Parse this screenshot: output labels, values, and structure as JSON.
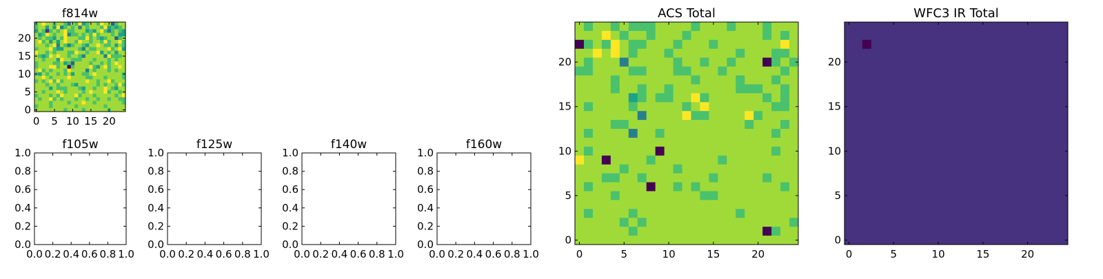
{
  "palette": [
    "#440154",
    "#46327e",
    "#365c8d",
    "#277f8e",
    "#1fa187",
    "#4ac16d",
    "#a0da39",
    "#fde725"
  ],
  "chart_data": [
    {
      "id": "f814w",
      "type": "heatmap",
      "title": "f814w",
      "grid_size": 25,
      "xlim": [
        -0.5,
        24.5
      ],
      "ylim": [
        -0.5,
        24.5
      ],
      "xticks": [
        0,
        5,
        10,
        15,
        20
      ],
      "yticks": [
        0,
        5,
        10,
        15,
        20
      ],
      "xticklabels": [
        "0",
        "5",
        "10",
        "15",
        "20"
      ],
      "yticklabels": [
        "0",
        "5",
        "10",
        "15",
        "20"
      ],
      "colormap": "viridis",
      "values": [
        "5676656653657456657662566",
        "5664647356563656665745456",
        "4651565675566645467535654",
        "6457656673556565756665644",
        "6565546576665575654566256",
        "6756464676657665665756675",
        "6665673653566546676556465",
        "5666754466665365566675674",
        "7665656665576656674656466",
        "6545767665665366666375556",
        "6656664766555666566656566",
        "5666655645266665665656766",
        "5666775660566667546756676",
        "6756566657666636566656566",
        "5465665656466556766666665",
        "6676566667666655666566665",
        "5656757566666676656675666",
        "6665665666546666656566575",
        "6666465556665466566765466",
        "6656667656666567666756656",
        "5666565766675666566666567",
        "6566756566656656656656655",
        "6666566665666766566666665",
        "5666566666656666666566666",
        "6666666656666566666656666"
      ]
    },
    {
      "id": "f105w",
      "type": "heatmap",
      "title": "f105w",
      "empty": true,
      "xlim": [
        0,
        1
      ],
      "ylim": [
        0,
        1
      ],
      "xticks": [
        0,
        0.2,
        0.4,
        0.6,
        0.8,
        1.0
      ],
      "yticks": [
        0,
        0.2,
        0.4,
        0.6,
        0.8,
        1.0
      ],
      "xticklabels": [
        "0.0",
        "0.2",
        "0.4",
        "0.6",
        "0.8",
        "1.0"
      ],
      "yticklabels": [
        "0.0",
        "0.2",
        "0.4",
        "0.6",
        "0.8",
        "1.0"
      ]
    },
    {
      "id": "f125w",
      "type": "heatmap",
      "title": "f125w",
      "empty": true,
      "xlim": [
        0,
        1
      ],
      "ylim": [
        0,
        1
      ],
      "xticks": [
        0,
        0.2,
        0.4,
        0.6,
        0.8,
        1.0
      ],
      "yticks": [
        0,
        0.2,
        0.4,
        0.6,
        0.8,
        1.0
      ],
      "xticklabels": [
        "0.0",
        "0.2",
        "0.4",
        "0.6",
        "0.8",
        "1.0"
      ],
      "yticklabels": [
        "0.0",
        "0.2",
        "0.4",
        "0.6",
        "0.8",
        "1.0"
      ]
    },
    {
      "id": "f140w",
      "type": "heatmap",
      "title": "f140w",
      "empty": true,
      "xlim": [
        0,
        1
      ],
      "ylim": [
        0,
        1
      ],
      "xticks": [
        0,
        0.2,
        0.4,
        0.6,
        0.8,
        1.0
      ],
      "yticks": [
        0,
        0.2,
        0.4,
        0.6,
        0.8,
        1.0
      ],
      "xticklabels": [
        "0.0",
        "0.2",
        "0.4",
        "0.6",
        "0.8",
        "1.0"
      ],
      "yticklabels": [
        "0.0",
        "0.2",
        "0.4",
        "0.6",
        "0.8",
        "1.0"
      ]
    },
    {
      "id": "f160w",
      "type": "heatmap",
      "title": "f160w",
      "empty": true,
      "xlim": [
        0,
        1
      ],
      "ylim": [
        0,
        1
      ],
      "xticks": [
        0,
        0.2,
        0.4,
        0.6,
        0.8,
        1.0
      ],
      "yticks": [
        0,
        0.2,
        0.4,
        0.6,
        0.8,
        1.0
      ],
      "xticklabels": [
        "0.0",
        "0.2",
        "0.4",
        "0.6",
        "0.8",
        "1.0"
      ],
      "yticklabels": [
        "0.0",
        "0.2",
        "0.4",
        "0.6",
        "0.8",
        "1.0"
      ]
    },
    {
      "id": "acs-total",
      "type": "heatmap",
      "title": "ACS Total",
      "grid_size": 25,
      "xlim": [
        -0.5,
        24.5
      ],
      "ylim": [
        -0.5,
        24.5
      ],
      "xticks": [
        0,
        5,
        10,
        15,
        20
      ],
      "yticks": [
        0,
        5,
        10,
        15,
        20
      ],
      "xticklabels": [
        "0",
        "5",
        "10",
        "15",
        "20"
      ],
      "yticklabels": [
        "0",
        "5",
        "10",
        "15",
        "20"
      ],
      "colormap": "viridis",
      "values": [
        "6566565556666566656665666",
        "6667656656665666666665656",
        "0565765566656665666666676",
        "6676765666566666665666556",
        "6566636666656656656660565",
        "5566665566655666566666656",
        "6666566666666566665666566",
        "6666566566566666665556656",
        "6666664565566756666665656",
        "6566665666665676666666556",
        "6666666366667556666756666",
        "6666556666666666666566656",
        "6566663665666666666666566",
        "6666666666666666666666666",
        "6566666660666666666666566",
        "7660666656666666566666666",
        "6666656666656666666666666",
        "6665566566666665666665666",
        "6566666606656566666666656",
        "6666566666666655666666666",
        "6666666666666666666666666",
        "6566665666666666665666666",
        "6666656566666666666666665",
        "6666665666666666666660566",
        "6666666666666666666666666"
      ]
    },
    {
      "id": "wfc3-ir-total",
      "type": "heatmap",
      "title": "WFC3 IR Total",
      "grid_size": 25,
      "xlim": [
        -0.5,
        24.5
      ],
      "ylim": [
        -0.5,
        24.5
      ],
      "xticks": [
        0,
        5,
        10,
        15,
        20
      ],
      "yticks": [
        0,
        5,
        10,
        15,
        20
      ],
      "xticklabels": [
        "0",
        "5",
        "10",
        "15",
        "20"
      ],
      "yticklabels": [
        "0",
        "5",
        "10",
        "15",
        "20"
      ],
      "colormap": "viridis",
      "masked_color": "#ffffff",
      "values": [
        "1111111111111111111111111",
        "1111111111111111111111111",
        "1101111111111111111111111",
        "1111111111111111111111111",
        "1111111111111111111111111",
        "1111111111111111111111111",
        "1111111111111111111111111",
        "1111111111111111111111111",
        "1111111111111111111111111",
        "1111111111111111111111111",
        "1111111111111111111111111",
        "1111111111111111111111111",
        "1111111111111111111111111",
        "1111111111111111111111111",
        "1111111111111111111111111",
        "1111111111111111111111111",
        "1111111111111111111111111",
        "1111111111111111111111111",
        "1111111111111111111111111",
        "1111111111111111111111111",
        "1111111111111111111111111",
        "1111111111111111111111111",
        "1111111111111111111111111",
        "1111111111111111111111111",
        "1111111111111111111111111"
      ]
    }
  ]
}
